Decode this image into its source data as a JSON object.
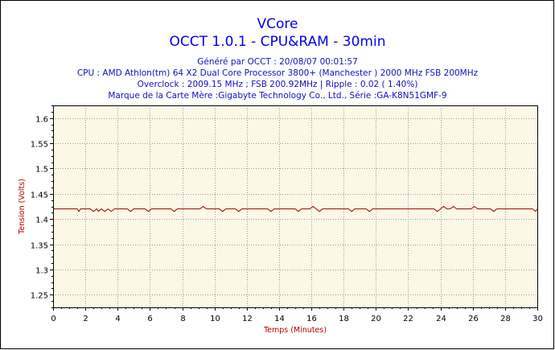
{
  "header": {
    "title": "VCore",
    "subtitle": "OCCT 1.0.1 - CPU&RAM -  30min",
    "info_lines": [
      "Généré par OCCT : 20/08/07 00:01:57",
      "CPU : AMD Athlon(tm) 64 X2 Dual Core Processor 3800+ (Manchester ) 2000 MHz FSB 200MHz",
      "Overclock : 2009.15 MHz ; FSB 200.92MHz | Ripple : 0.02 ( 1.40%)",
      "Marque de la Carte Mère :Gigabyte Technology Co., Ltd., Série :GA-K8N51GMF-9"
    ]
  },
  "colors": {
    "plot_background": "#fdf8e6",
    "grid": "#999999",
    "series_line": "#a00000",
    "title": "#0000ee",
    "info_text": "#1010c0",
    "axis_title": "#b00000"
  },
  "chart_data": {
    "type": "line",
    "xlabel": "Temps (Minutes)",
    "ylabel": "Tension (Volts)",
    "xlim": [
      0,
      30
    ],
    "ylim": [
      1.225,
      1.625
    ],
    "x_ticks": [
      0,
      2,
      4,
      6,
      8,
      10,
      12,
      14,
      16,
      18,
      20,
      22,
      24,
      26,
      28,
      30
    ],
    "y_ticks": [
      1.25,
      1.3,
      1.35,
      1.4,
      1.45,
      1.5,
      1.55,
      1.6
    ],
    "y_tick_labels": [
      "1.25",
      "1.3",
      "1.35",
      "1.4",
      "1.45",
      "1.5",
      "1.55",
      "1.6"
    ],
    "grid": true,
    "legend": "none",
    "series": [
      {
        "x": [
          0,
          1.5,
          1.6,
          1.7,
          2.3,
          2.5,
          2.7,
          2.8,
          3.0,
          3.2,
          3.4,
          3.6,
          3.8,
          4.6,
          4.8,
          5.0,
          5.7,
          5.9,
          6.1,
          7.3,
          7.5,
          7.7,
          9.1,
          9.3,
          9.5,
          10.3,
          10.5,
          10.7,
          11.3,
          11.5,
          11.7,
          13.3,
          13.5,
          13.7,
          15.0,
          15.2,
          15.4,
          15.9,
          16.1,
          16.3,
          16.5,
          16.7,
          18.3,
          18.5,
          18.7,
          19.4,
          19.6,
          19.8,
          23.6,
          23.8,
          24.0,
          24.2,
          24.4,
          24.6,
          24.8,
          25.0,
          25.9,
          26.1,
          26.3,
          27.1,
          27.3,
          27.5,
          29.7,
          29.9,
          30
        ],
        "y": [
          1.42,
          1.42,
          1.415,
          1.42,
          1.42,
          1.415,
          1.42,
          1.415,
          1.42,
          1.415,
          1.42,
          1.415,
          1.42,
          1.42,
          1.415,
          1.42,
          1.42,
          1.415,
          1.42,
          1.42,
          1.415,
          1.42,
          1.42,
          1.425,
          1.42,
          1.42,
          1.415,
          1.42,
          1.42,
          1.415,
          1.42,
          1.42,
          1.415,
          1.42,
          1.42,
          1.415,
          1.42,
          1.42,
          1.425,
          1.42,
          1.415,
          1.42,
          1.42,
          1.415,
          1.42,
          1.42,
          1.415,
          1.42,
          1.42,
          1.415,
          1.42,
          1.425,
          1.42,
          1.42,
          1.425,
          1.42,
          1.42,
          1.425,
          1.42,
          1.42,
          1.415,
          1.42,
          1.42,
          1.415,
          1.42
        ]
      }
    ]
  }
}
